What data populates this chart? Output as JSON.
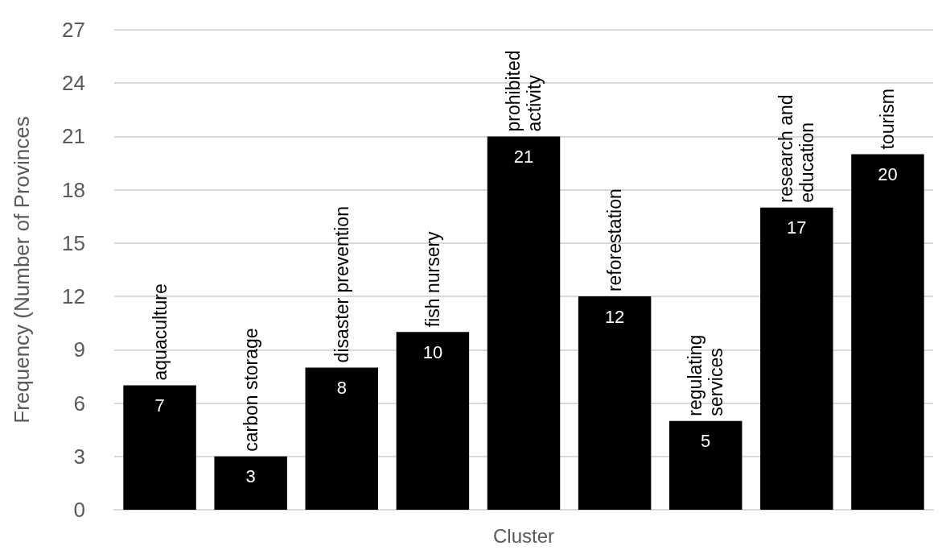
{
  "chart_data": {
    "type": "bar",
    "xlabel": "Cluster",
    "ylabel": "Frequency (Number of Provinces",
    "categories": [
      "aquaculture",
      "carbon storage",
      "disaster prevention",
      "fish nursery",
      "prohibited\nactivity",
      "reforestation",
      "regulating\nservices",
      "research and\neducation",
      "tourism"
    ],
    "values": [
      7,
      3,
      8,
      10,
      21,
      12,
      5,
      17,
      20
    ],
    "color": "#000000",
    "ylim": [
      0,
      27
    ],
    "yticks": [
      0,
      3,
      6,
      9,
      12,
      15,
      18,
      21,
      24,
      27
    ],
    "grid": "y",
    "data_labels": true
  }
}
